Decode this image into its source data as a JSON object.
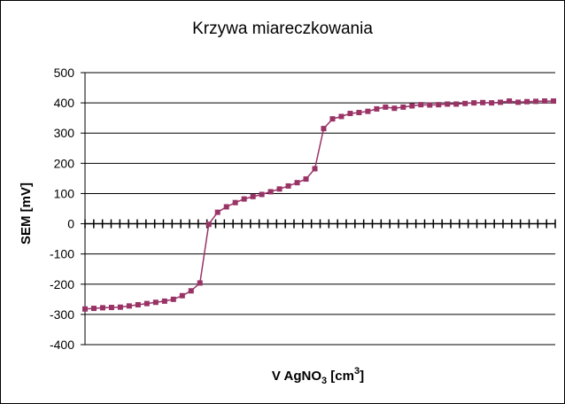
{
  "chart_data": {
    "type": "line",
    "title": "Krzywa miareczkowania",
    "xlabel": {
      "main": "V AgNO",
      "sub": "3",
      "unit_open": " [cm",
      "sup": "3",
      "unit_close": "]"
    },
    "ylabel": "SEM [mV]",
    "ylim": [
      -400,
      500
    ],
    "yticks": [
      500,
      400,
      300,
      200,
      100,
      0,
      -100,
      -200,
      -300,
      -400
    ],
    "grid": "horizontal",
    "legend": "none",
    "x_tick_count": 54,
    "series": [
      {
        "color": "#993366",
        "marker": "square",
        "x": [
          0,
          1,
          2,
          3,
          4,
          5,
          6,
          7,
          8,
          9,
          10,
          11,
          12,
          13,
          14,
          15,
          16,
          17,
          18,
          19,
          20,
          21,
          22,
          23,
          24,
          25,
          26,
          27,
          28,
          29,
          30,
          31,
          32,
          33,
          34,
          35,
          36,
          37,
          38,
          39,
          40,
          41,
          42,
          43,
          44,
          45,
          46,
          47,
          48,
          49,
          50,
          51,
          52,
          53
        ],
        "y": [
          -282,
          -280,
          -278,
          -277,
          -276,
          -272,
          -268,
          -264,
          -260,
          -256,
          -250,
          -238,
          -222,
          -196,
          -2,
          38,
          56,
          70,
          82,
          90,
          97,
          106,
          115,
          125,
          136,
          148,
          182,
          315,
          347,
          355,
          365,
          368,
          372,
          380,
          386,
          382,
          386,
          390,
          394,
          393,
          394,
          396,
          396,
          398,
          400,
          401,
          400,
          402,
          406,
          402,
          404,
          405,
          406,
          406
        ]
      }
    ]
  }
}
